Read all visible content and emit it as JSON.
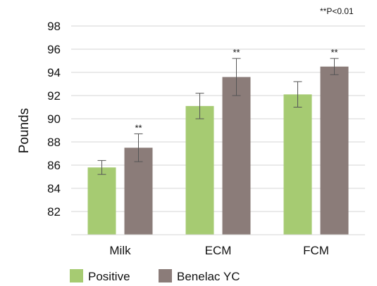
{
  "chart_data": {
    "type": "bar",
    "note": "**P<0.01",
    "ylabel": "Pounds",
    "xlabel": "",
    "ylim": [
      80,
      98
    ],
    "yticks": [
      82,
      84,
      86,
      88,
      90,
      92,
      94,
      96,
      98
    ],
    "grid": true,
    "legend_position": "bottom-left",
    "categories": [
      "Milk",
      "ECM",
      "FCM"
    ],
    "series": [
      {
        "name": "Positive",
        "color": "#a6cb72",
        "values": [
          85.8,
          91.1,
          92.1
        ],
        "error": [
          0.6,
          1.1,
          1.1
        ],
        "significance": [
          "",
          "",
          ""
        ]
      },
      {
        "name": "Benelac YC",
        "color": "#8b7c79",
        "values": [
          87.5,
          93.6,
          94.5
        ],
        "error": [
          1.2,
          1.6,
          0.7
        ],
        "significance": [
          "**",
          "**",
          "**"
        ]
      }
    ]
  }
}
